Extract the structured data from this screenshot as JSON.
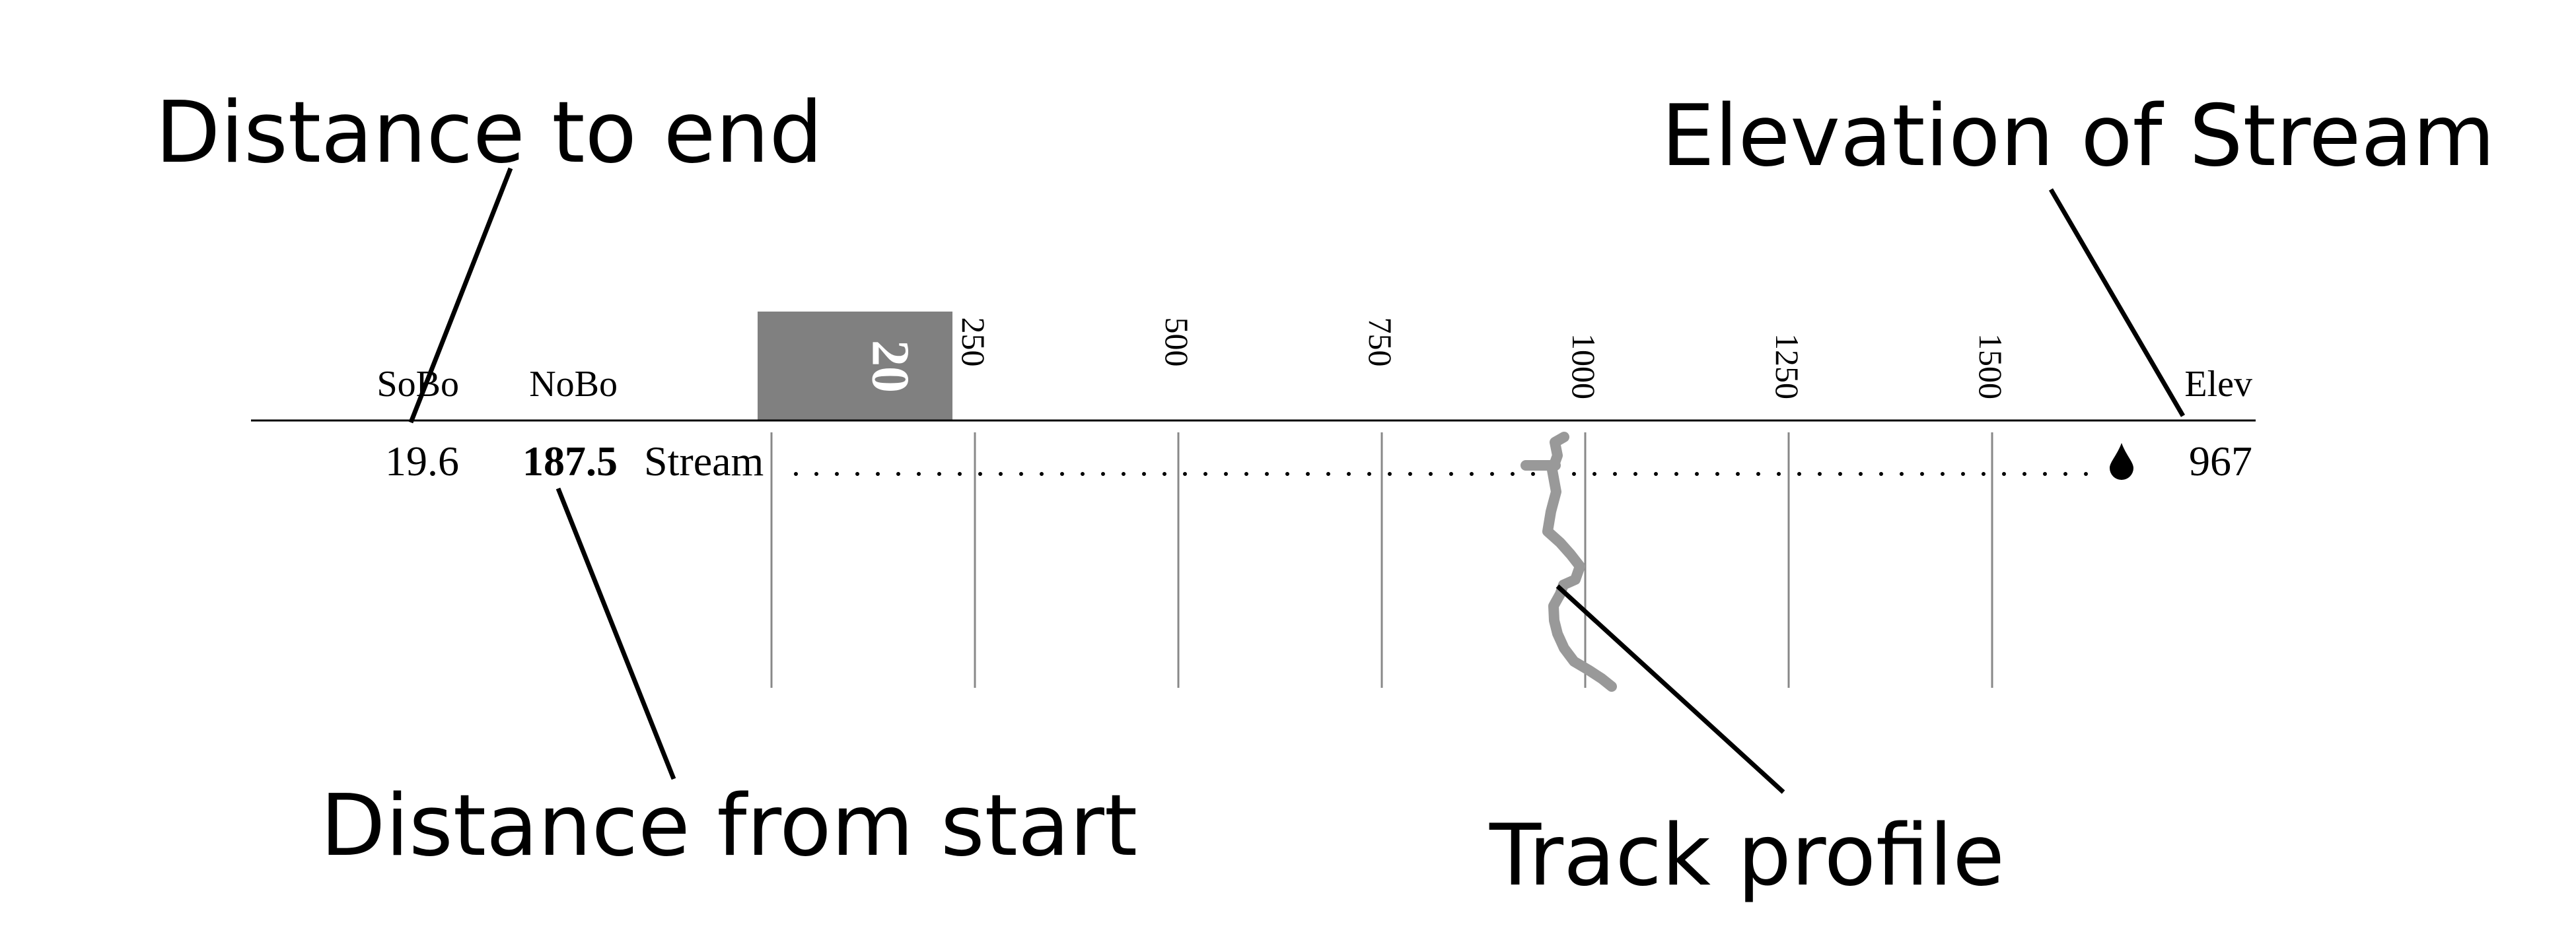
{
  "annotations": {
    "distance_to_end": "Distance to end",
    "elevation_of_stream": "Elevation of Stream",
    "distance_from_start": "Distance from start",
    "track_profile": "Track profile"
  },
  "header": {
    "sobo": "SoBo",
    "nobo": "NoBo",
    "elev": "Elev",
    "page_number": "20"
  },
  "scale": {
    "ticks": [
      "250",
      "500",
      "750",
      "1000",
      "1250",
      "1500"
    ]
  },
  "entry": {
    "sobo_value": "19.6",
    "nobo_value": "187.5",
    "name": "Stream",
    "elevation": "967",
    "icon": "water-drop-icon"
  },
  "colors": {
    "profile": "#999999",
    "page_tab": "#808080"
  }
}
